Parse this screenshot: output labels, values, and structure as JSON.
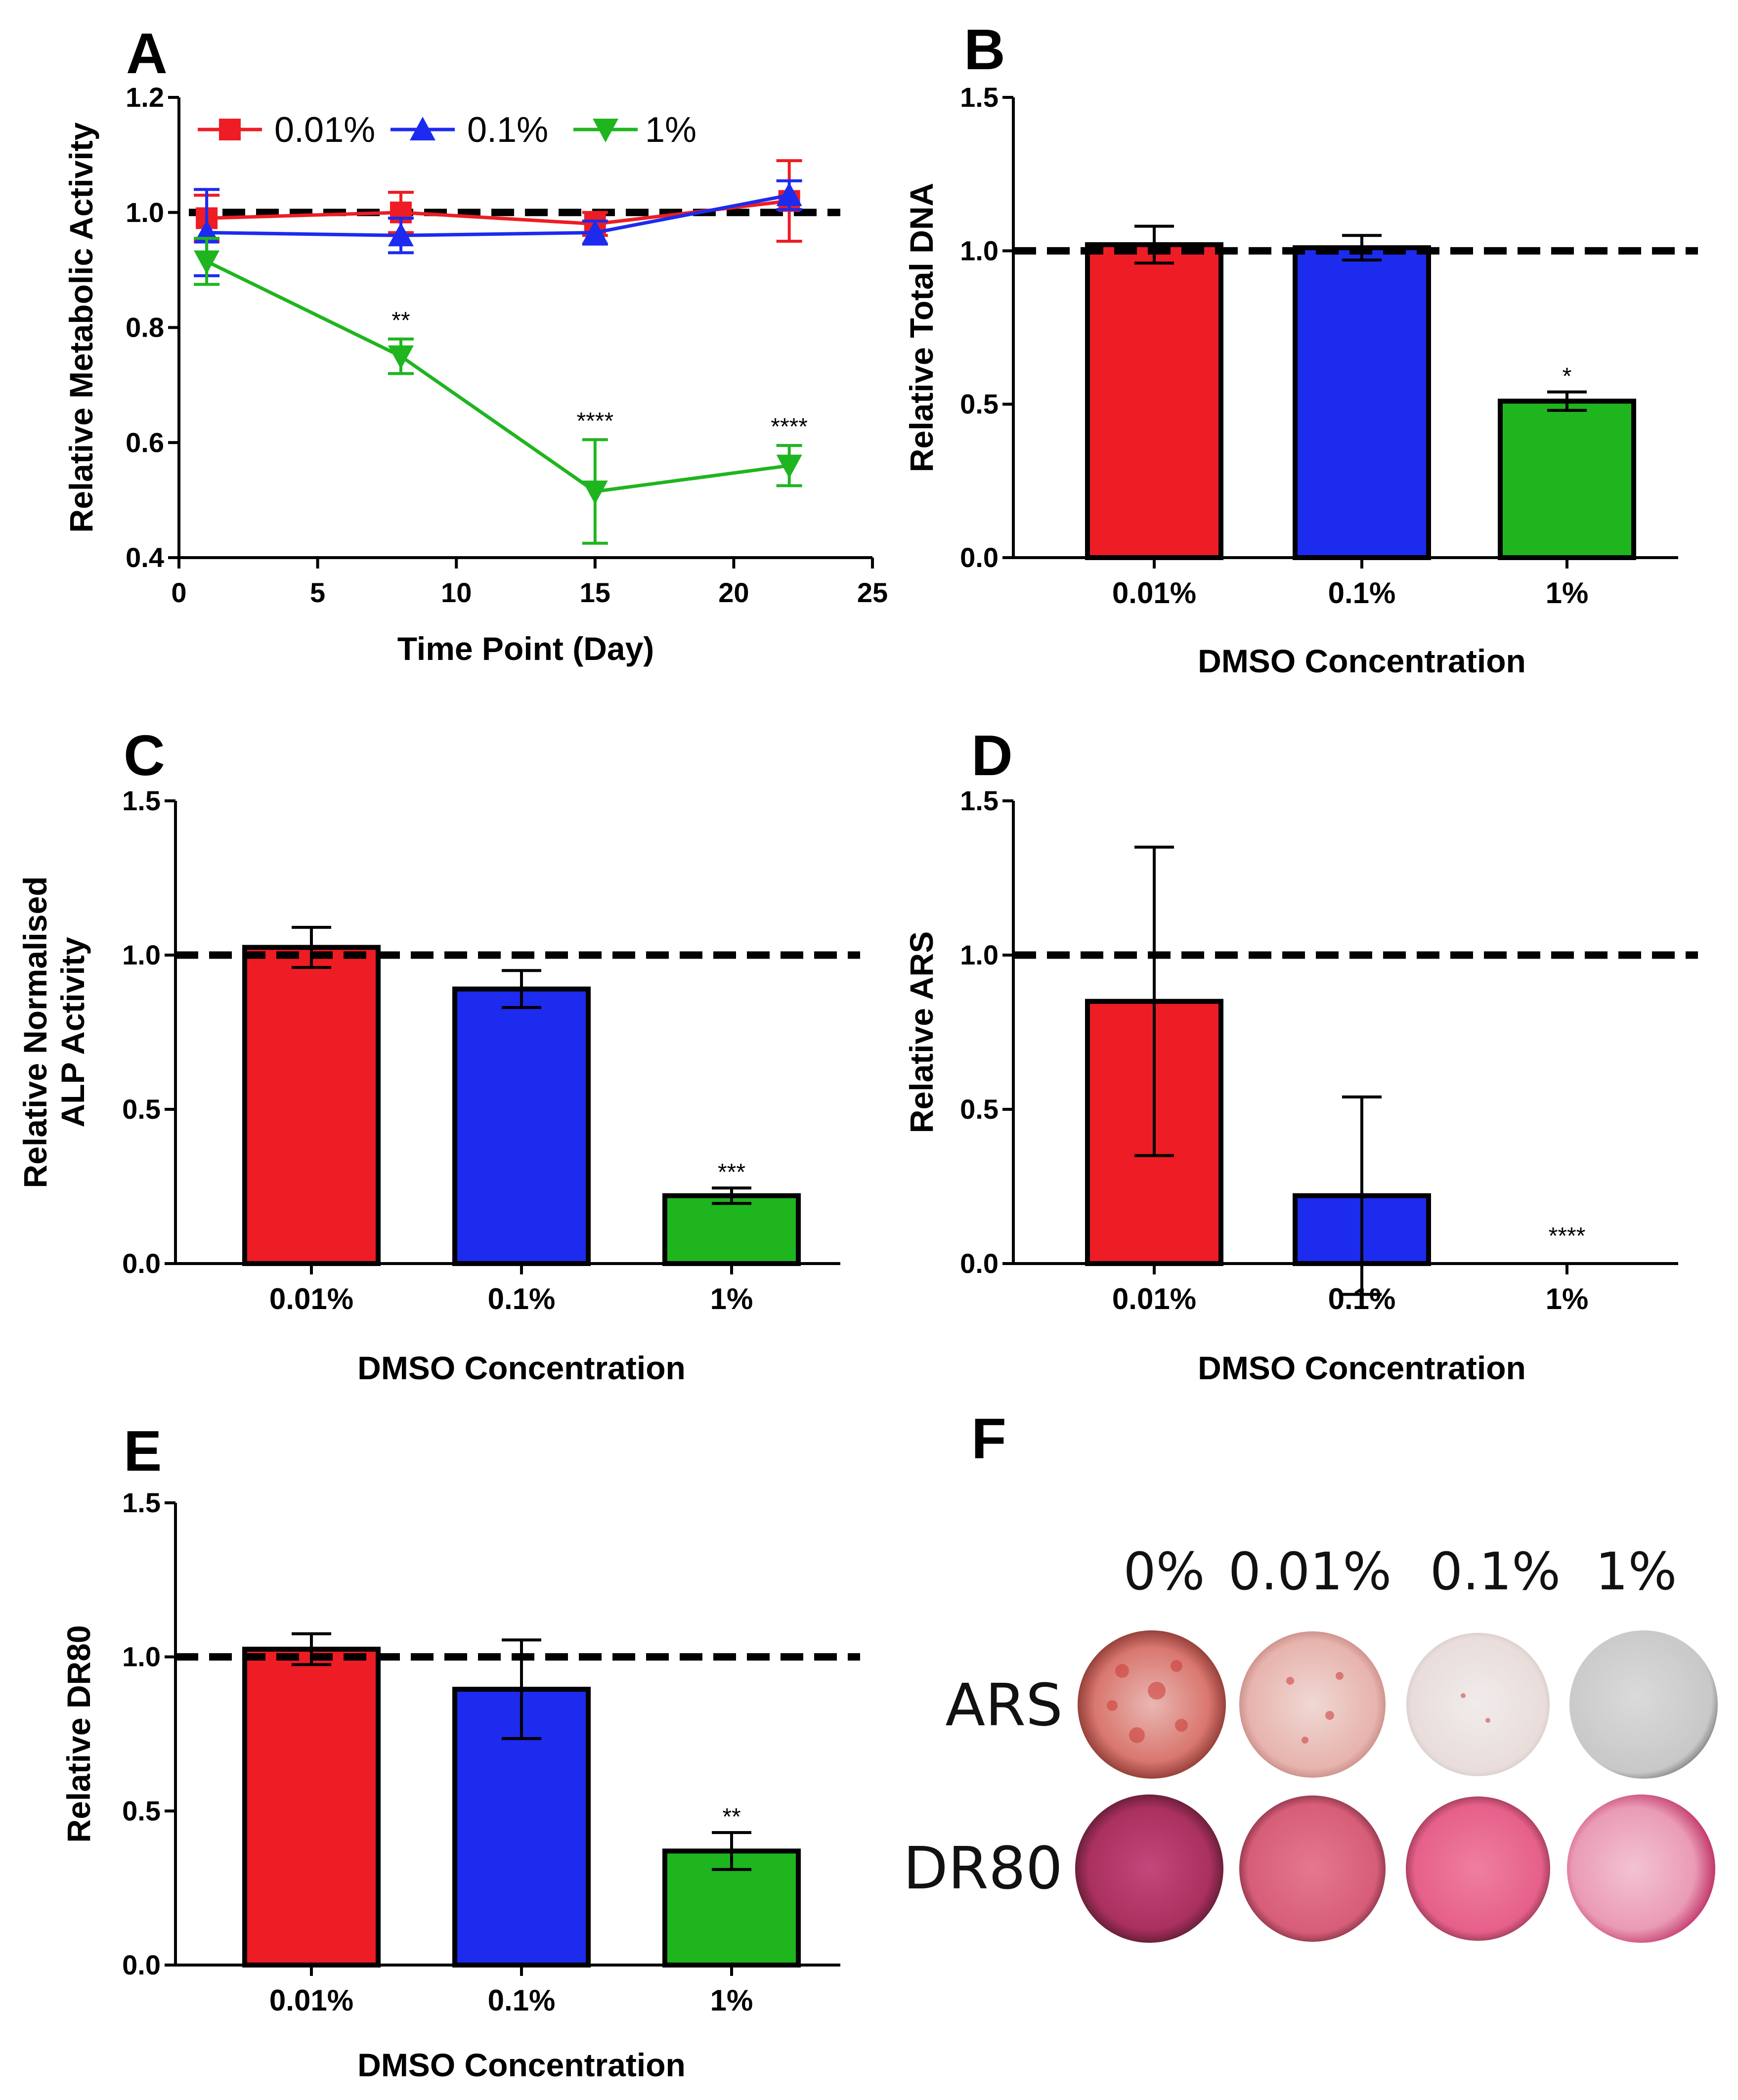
{
  "chart_data": [
    {
      "panel": "A",
      "type": "line",
      "xlabel": "Time Point (Day)",
      "ylabel": "Relative Metabolic Activity",
      "xlim": [
        0,
        25
      ],
      "ylim": [
        0.4,
        1.2
      ],
      "xticks": [
        0,
        5,
        10,
        15,
        20,
        25
      ],
      "yticks": [
        0.4,
        0.6,
        0.8,
        1.0,
        1.2
      ],
      "xtick_labels": [
        "0",
        "5",
        "10",
        "15",
        "20",
        "25"
      ],
      "ytick_labels": [
        "0.4",
        "0.6",
        "0.8",
        "1.0",
        "1.2"
      ],
      "reference_line": 1.0,
      "legend": {
        "placement": "top-left"
      },
      "series": [
        {
          "name": "0.01%",
          "color": "#ee1c24",
          "marker": "square",
          "x": [
            1,
            8,
            15,
            22
          ],
          "y": [
            0.99,
            1.0,
            0.98,
            1.02
          ],
          "err": [
            0.04,
            0.035,
            0.02,
            0.07
          ]
        },
        {
          "name": "0.1%",
          "color": "#1c2bee",
          "marker": "triangle-up",
          "x": [
            1,
            8,
            15,
            22
          ],
          "y": [
            0.965,
            0.96,
            0.965,
            1.03
          ],
          "err": [
            0.075,
            0.03,
            0.02,
            0.025
          ]
        },
        {
          "name": "1%",
          "color": "#1fb51f",
          "marker": "triangle-down",
          "x": [
            1,
            8,
            15,
            22
          ],
          "y": [
            0.915,
            0.75,
            0.515,
            0.56
          ],
          "err": [
            0.04,
            0.03,
            0.09,
            0.035
          ]
        }
      ],
      "annotations": [
        {
          "x": 8,
          "text": "**"
        },
        {
          "x": 15,
          "text": "****"
        },
        {
          "x": 22,
          "text": "****"
        }
      ]
    },
    {
      "panel": "B",
      "type": "bar",
      "categories": [
        "0.01%",
        "0.1%",
        "1%"
      ],
      "values": [
        1.02,
        1.01,
        0.51
      ],
      "err": [
        0.06,
        0.04,
        0.03
      ],
      "colors": [
        "#ee1c24",
        "#1c2bee",
        "#1fb51f"
      ],
      "annotations": [
        "",
        "",
        "*"
      ],
      "xlabel": "DMSO Concentration",
      "ylabel": "Relative Total DNA",
      "ylim": [
        0,
        1.5
      ],
      "yticks": [
        0,
        0.5,
        1.0,
        1.5
      ],
      "ytick_labels": [
        "0.0",
        "0.5",
        "1.0",
        "1.5"
      ],
      "reference_line": 1.0
    },
    {
      "panel": "C",
      "type": "bar",
      "categories": [
        "0.01%",
        "0.1%",
        "1%"
      ],
      "values": [
        1.025,
        0.89,
        0.22
      ],
      "err": [
        0.065,
        0.06,
        0.025
      ],
      "colors": [
        "#ee1c24",
        "#1c2bee",
        "#1fb51f"
      ],
      "annotations": [
        "",
        "",
        "***"
      ],
      "xlabel": "DMSO Concentration",
      "ylabel": [
        "Relative Normalised",
        "ALP Activity"
      ],
      "ylim": [
        0,
        1.5
      ],
      "yticks": [
        0,
        0.5,
        1.0,
        1.5
      ],
      "ytick_labels": [
        "0.0",
        "0.5",
        "1.0",
        "1.5"
      ],
      "reference_line": 1.0
    },
    {
      "panel": "D",
      "type": "bar",
      "categories": [
        "0.01%",
        "0.1%",
        "1%"
      ],
      "values": [
        0.85,
        0.22,
        0.0
      ],
      "err": [
        0.5,
        0.32,
        0.0
      ],
      "colors": [
        "#ee1c24",
        "#1c2bee",
        "#1fb51f"
      ],
      "annotations": [
        "",
        "",
        "****"
      ],
      "xlabel": "DMSO Concentration",
      "ylabel": "Relative  ARS",
      "ylim": [
        0,
        1.5
      ],
      "yticks": [
        0,
        0.5,
        1.0,
        1.5
      ],
      "ytick_labels": [
        "0.0",
        "0.5",
        "1.0",
        "1.5"
      ],
      "reference_line": 1.0
    },
    {
      "panel": "E",
      "type": "bar",
      "categories": [
        "0.01%",
        "0.1%",
        "1%"
      ],
      "values": [
        1.025,
        0.895,
        0.37
      ],
      "err": [
        0.05,
        0.16,
        0.06
      ],
      "colors": [
        "#ee1c24",
        "#1c2bee",
        "#1fb51f"
      ],
      "annotations": [
        "",
        "",
        "**"
      ],
      "xlabel": "DMSO Concentration",
      "ylabel": "Relative DR80",
      "ylim": [
        0,
        1.5
      ],
      "yticks": [
        0,
        0.5,
        1.0,
        1.5
      ],
      "ytick_labels": [
        "0.0",
        "0.5",
        "1.0",
        "1.5"
      ],
      "reference_line": 1.0
    }
  ],
  "panel_f": {
    "letter": "F",
    "columns": [
      "0%",
      "0.01%",
      "0.1%",
      "1%"
    ],
    "rows": [
      "ARS",
      "DR80"
    ]
  }
}
